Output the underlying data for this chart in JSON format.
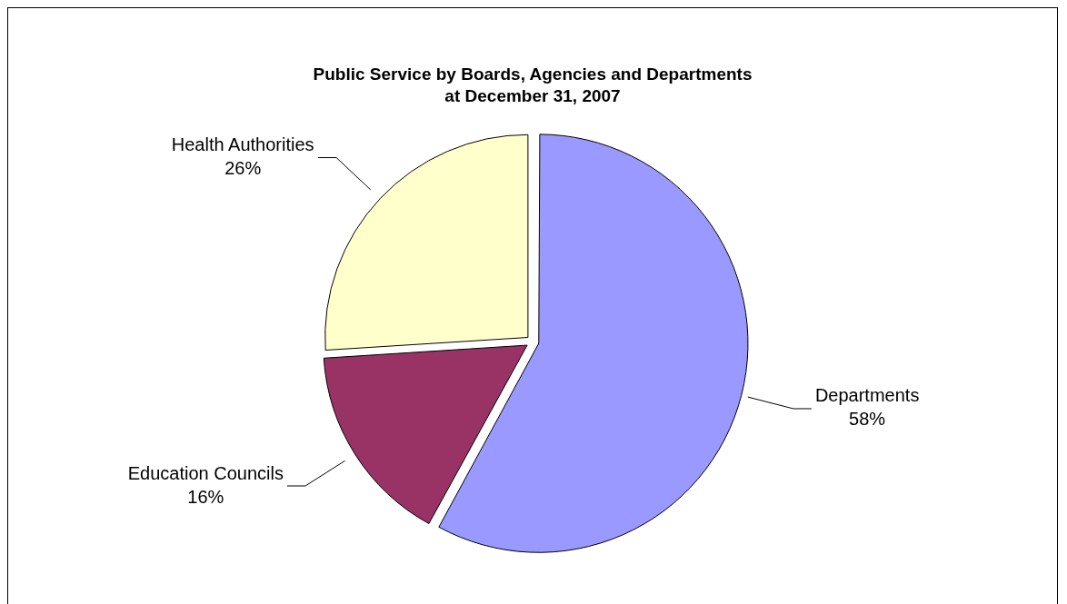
{
  "chart_data": {
    "type": "pie",
    "title": "Public Service by Boards, Agencies and Departments",
    "subtitle": "at December 31, 2007",
    "categories": [
      "Departments",
      "Education Councils",
      "Health Authorities"
    ],
    "values": [
      58,
      16,
      26
    ],
    "value_labels": [
      "58%",
      "16%",
      "26%"
    ],
    "colors": [
      "#9999ff",
      "#993366",
      "#ffffcc"
    ],
    "legend": false
  }
}
